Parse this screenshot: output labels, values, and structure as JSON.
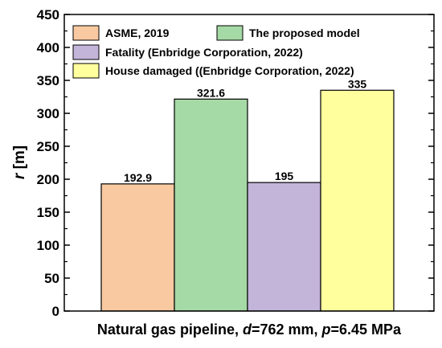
{
  "chart_data": {
    "type": "bar",
    "categories": [
      ""
    ],
    "series": [
      {
        "name": "ASME, 2019",
        "values": [
          192.9
        ],
        "color": "#f9c9a1",
        "value_label": "192.9"
      },
      {
        "name": "The proposed model",
        "values": [
          321.6
        ],
        "color": "#a5d9a5",
        "value_label": "321.6"
      },
      {
        "name": "Fatality (Enbridge Corporation, 2022)",
        "values": [
          195
        ],
        "color": "#c3b4d9",
        "value_label": "195"
      },
      {
        "name": "House damaged ((Enbridge Corporation, 2022)",
        "values": [
          335
        ],
        "color": "#ffff9e",
        "value_label": "335"
      }
    ],
    "ylabel_italic": "r",
    "ylabel_unit": " [m]",
    "xlabel_parts": {
      "prefix": "Natural gas pipeline, ",
      "d_var": "d",
      "d_val": "=762 mm, ",
      "p_var": "p",
      "p_val": "=6.45 MPa"
    },
    "ylim": [
      0,
      450
    ],
    "yticks": [
      "0",
      "50",
      "100",
      "150",
      "200",
      "250",
      "300",
      "350",
      "400",
      "450"
    ],
    "grid": false,
    "legend_position": "top"
  }
}
